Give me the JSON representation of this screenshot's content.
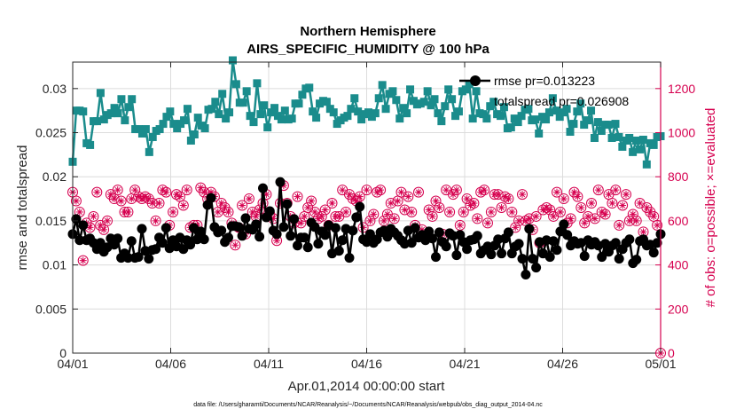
{
  "chart_data": {
    "type": "line",
    "title": "Northern Hemisphere",
    "subtitle": "AIRS_SPECIFIC_HUMIDITY @ 100 hPa",
    "xlabel": "Apr.01,2014 00:00:00 start",
    "ylabel": "rmse and totalspread",
    "y2label": "# of obs: o=possible; ×=evaluated",
    "footnote": "data file: /Users/gharamti/Documents/NCAR/Reanalysis/~/Documents/NCAR/Reanalysis/webpub/obs_diag_output_2014-04.nc",
    "x_tick_labels": [
      "04/01",
      "04/06",
      "04/11",
      "04/16",
      "04/21",
      "04/26",
      "05/01"
    ],
    "x_tick_days": [
      0,
      5,
      10,
      15,
      20,
      25,
      30
    ],
    "xlim": [
      0,
      30
    ],
    "ylim": [
      0,
      0.033
    ],
    "y_ticks": [
      "0",
      "0.005",
      "0.01",
      "0.015",
      "0.02",
      "0.025",
      "0.03"
    ],
    "y_tick_values": [
      0,
      0.005,
      0.01,
      0.015,
      0.02,
      0.025,
      0.03
    ],
    "y2lim": [
      0,
      1320
    ],
    "y2_ticks": [
      "0",
      "200",
      "400",
      "600",
      "800",
      "1000",
      "1200"
    ],
    "y2_tick_values": [
      0,
      200,
      400,
      600,
      800,
      1000,
      1200
    ],
    "grid": true,
    "legend_position": "top-right",
    "colors": {
      "rmse": "#000000",
      "spread": "#1a8c8c",
      "obs": "#d6004f"
    },
    "series": [
      {
        "name": "rmse pr=0.013223",
        "values": [
          0.0135,
          0.0152,
          0.0128,
          0.0145,
          0.0128,
          0.013,
          0.0125,
          0.0118,
          0.0125,
          0.0115,
          0.012,
          0.013,
          0.0123,
          0.013,
          0.0108,
          0.0113,
          0.0108,
          0.0127,
          0.0108,
          0.0109,
          0.0141,
          0.0116,
          0.0107,
          0.0117,
          0.0118,
          0.0131,
          0.0125,
          0.0142,
          0.0119,
          0.0128,
          0.0121,
          0.0131,
          0.0118,
          0.0128,
          0.0123,
          0.0142,
          0.0129,
          0.0138,
          0.0129,
          0.0168,
          0.0176,
          0.0143,
          0.0137,
          0.0139,
          0.0126,
          0.0131,
          0.0144,
          0.0144,
          0.0143,
          0.0133,
          0.0153,
          0.0141,
          0.014,
          0.0146,
          0.0132,
          0.0187,
          0.0154,
          0.0161,
          0.0139,
          0.0135,
          0.0194,
          0.0143,
          0.0169,
          0.0133,
          0.0152,
          0.0122,
          0.0131,
          0.0131,
          0.012,
          0.0148,
          0.0143,
          0.0124,
          0.0138,
          0.0134,
          0.0145,
          0.0113,
          0.0142,
          0.0116,
          0.0128,
          0.0141,
          0.0108,
          0.0139,
          0.0154,
          0.0166,
          0.0129,
          0.0126,
          0.0135,
          0.0125,
          0.0129,
          0.0137,
          0.0139,
          0.0132,
          0.0141,
          0.0137,
          0.0133,
          0.0128,
          0.0124,
          0.0139,
          0.0125,
          0.0142,
          0.0131,
          0.0134,
          0.0128,
          0.0138,
          0.013,
          0.0109,
          0.0137,
          0.0126,
          0.0121,
          0.0136,
          0.0133,
          0.0111,
          0.0134,
          0.0126,
          0.0118,
          0.0128,
          0.0129,
          0.0133,
          0.0113,
          0.0117,
          0.0121,
          0.0112,
          0.0122,
          0.0129,
          0.0113,
          0.013,
          0.0137,
          0.0113,
          0.0121,
          0.0124,
          0.0107,
          0.0089,
          0.0141,
          0.0107,
          0.0097,
          0.0126,
          0.0113,
          0.0128,
          0.0109,
          0.0127,
          0.0117,
          0.0138,
          0.0146,
          0.0134,
          0.0122,
          0.0127,
          0.0124,
          0.0125,
          0.011,
          0.0128,
          0.0123,
          0.0126,
          0.0122,
          0.0109,
          0.0124,
          0.0115,
          0.0122,
          0.0125,
          0.0107,
          0.0118,
          0.0125,
          0.0129,
          0.0102,
          0.0106,
          0.0127,
          0.0129,
          0.0122,
          0.0123,
          0.0114,
          0.0125,
          0.0135
        ]
      },
      {
        "name": "totalspread pr=0.026908",
        "values": [
          0.0217,
          0.0275,
          0.0275,
          0.0274,
          0.0238,
          0.0236,
          0.0263,
          0.0263,
          0.0295,
          0.0265,
          0.027,
          0.0272,
          0.0278,
          0.0272,
          0.0288,
          0.0264,
          0.0279,
          0.0288,
          0.0254,
          0.0254,
          0.0249,
          0.0254,
          0.0228,
          0.0245,
          0.0252,
          0.0254,
          0.026,
          0.0268,
          0.0274,
          0.026,
          0.0255,
          0.026,
          0.0264,
          0.0277,
          0.0241,
          0.0248,
          0.0267,
          0.0258,
          0.0255,
          0.0276,
          0.0277,
          0.0285,
          0.0271,
          0.0294,
          0.0266,
          0.0273,
          0.0332,
          0.0305,
          0.0284,
          0.0284,
          0.0297,
          0.0269,
          0.0262,
          0.0306,
          0.0271,
          0.0281,
          0.0256,
          0.0273,
          0.0278,
          0.0269,
          0.0265,
          0.0275,
          0.0265,
          0.0266,
          0.0283,
          0.0283,
          0.0293,
          0.03,
          0.0301,
          0.0274,
          0.0267,
          0.0283,
          0.0286,
          0.0285,
          0.0277,
          0.0273,
          0.026,
          0.0264,
          0.0267,
          0.0269,
          0.0277,
          0.0289,
          0.0274,
          0.0265,
          0.0271,
          0.0273,
          0.0268,
          0.0272,
          0.0289,
          0.0304,
          0.0277,
          0.0294,
          0.0297,
          0.0287,
          0.0266,
          0.0278,
          0.0272,
          0.0299,
          0.0286,
          0.0282,
          0.0283,
          0.0285,
          0.0297,
          0.0281,
          0.0288,
          0.0272,
          0.0263,
          0.028,
          0.0299,
          0.0288,
          0.0269,
          0.0274,
          0.0297,
          0.0299,
          0.0305,
          0.0266,
          0.0297,
          0.0272,
          0.0271,
          0.0266,
          0.028,
          0.0285,
          0.0271,
          0.0269,
          0.0279,
          0.0255,
          0.0256,
          0.0266,
          0.0262,
          0.0269,
          0.0276,
          0.0277,
          0.0264,
          0.0265,
          0.0249,
          0.0268,
          0.0265,
          0.0273,
          0.0289,
          0.0275,
          0.0268,
          0.0273,
          0.0277,
          0.0251,
          0.026,
          0.0274,
          0.0283,
          0.0259,
          0.0264,
          0.0275,
          0.0244,
          0.0262,
          0.0252,
          0.0259,
          0.0259,
          0.0244,
          0.026,
          0.0245,
          0.0234,
          0.0241,
          0.0244,
          0.0228,
          0.0241,
          0.0231,
          0.0242,
          0.0214,
          0.0238,
          0.0236,
          0.0245,
          0.0246
        ]
      },
      {
        "name": "obs possible/evaluated",
        "axis": "right",
        "values": [
          730,
          690,
          640,
          420,
          590,
          570,
          620,
          730,
          580,
          560,
          600,
          720,
          700,
          740,
          690,
          640,
          640,
          700,
          740,
          710,
          700,
          710,
          700,
          680,
          600,
          680,
          740,
          730,
          580,
          640,
          720,
          710,
          670,
          740,
          570,
          580,
          580,
          750,
          730,
          700,
          730,
          710,
          640,
          680,
          660,
          640,
          590,
          490,
          570,
          670,
          540,
          700,
          640,
          620,
          650,
          680,
          720,
          630,
          610,
          510,
          680,
          760,
          680,
          620,
          590,
          710,
          590,
          620,
          660,
          690,
          640,
          610,
          620,
          650,
          580,
          680,
          620,
          620,
          740,
          640,
          720,
          700,
          690,
          710,
          570,
          740,
          600,
          630,
          730,
          740,
          600,
          630,
          680,
          610,
          690,
          730,
          650,
          710,
          640,
          580,
          730,
          560,
          530,
          650,
          620,
          690,
          660,
          540,
          740,
          640,
          720,
          740,
          580,
          640,
          700,
          670,
          680,
          610,
          730,
          740,
          590,
          640,
          720,
          720,
          660,
          710,
          700,
          640,
          570,
          600,
          720,
          600,
          610,
          560,
          620,
          500,
          650,
          660,
          650,
          620,
          730,
          640,
          700,
          590,
          610,
          730,
          710,
          660,
          590,
          620,
          680,
          610,
          740,
          640,
          630,
          720,
          680,
          740,
          580,
          670,
          720,
          600,
          630,
          600,
          680,
          550,
          660,
          640,
          620,
          580,
          0
        ]
      }
    ]
  }
}
